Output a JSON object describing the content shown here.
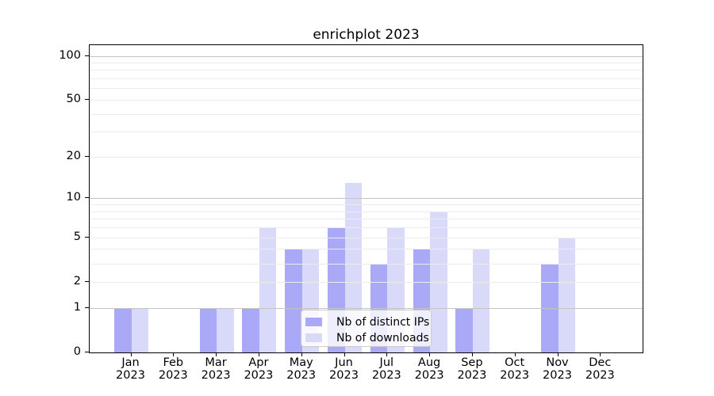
{
  "title": "enrichplot 2023",
  "chart_data": {
    "type": "bar",
    "title": "enrichplot 2023",
    "y_scale": "log1p",
    "categories": [
      "Jan",
      "Feb",
      "Mar",
      "Apr",
      "May",
      "Jun",
      "Jul",
      "Aug",
      "Sep",
      "Oct",
      "Nov",
      "Dec"
    ],
    "year_label": "2023",
    "series": [
      {
        "name": "Nb of distinct IPs",
        "color": "#a9a9f7",
        "values": [
          1,
          0,
          1,
          1,
          4,
          6,
          3,
          4,
          1,
          0,
          3,
          0
        ]
      },
      {
        "name": "Nb of downloads",
        "color": "#d9d9f9",
        "values": [
          1,
          0,
          1,
          6,
          4,
          13,
          6,
          8,
          4,
          0,
          5,
          0
        ]
      }
    ],
    "y_tick_labels": [
      100,
      50,
      20,
      10,
      5,
      2,
      1,
      0
    ],
    "major_gridlines": [
      1,
      10,
      100
    ],
    "minor_gridlines": [
      2,
      3,
      4,
      5,
      6,
      7,
      8,
      9,
      20,
      30,
      40,
      50,
      60,
      70,
      80,
      90
    ],
    "ylim": [
      0,
      118
    ],
    "grid": true,
    "legend_position": "lower center"
  },
  "colors": {
    "background": "#ffffff",
    "axis": "#000000",
    "major_grid": "#c4c4c4",
    "minor_grid": "#ececec",
    "legend_border": "#cccccc",
    "bar_distinct_ips": "#a9a9f7",
    "bar_downloads": "#d9d9f9"
  }
}
